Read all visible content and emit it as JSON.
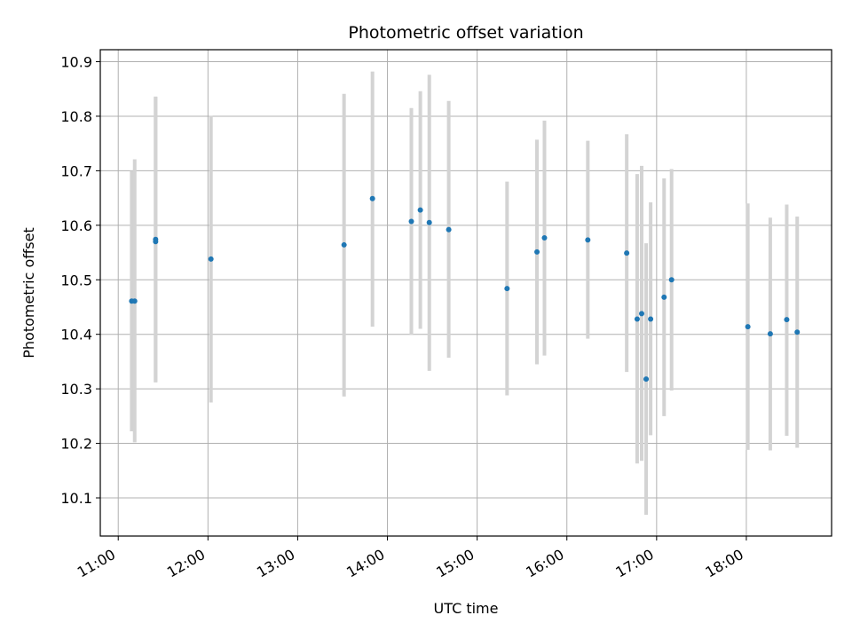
{
  "chart_data": {
    "type": "scatter",
    "title": "Photometric offset variation",
    "xlabel": "UTC time",
    "ylabel": "Photometric offset",
    "x_unit": "hour",
    "xlim": [
      10.8,
      18.95
    ],
    "ylim": [
      10.03,
      10.922
    ],
    "grid": true,
    "x_ticks": [
      {
        "value": 11,
        "label": "11:00"
      },
      {
        "value": 12,
        "label": "12:00"
      },
      {
        "value": 13,
        "label": "13:00"
      },
      {
        "value": 14,
        "label": "14:00"
      },
      {
        "value": 15,
        "label": "15:00"
      },
      {
        "value": 16,
        "label": "16:00"
      },
      {
        "value": 17,
        "label": "17:00"
      },
      {
        "value": 18,
        "label": "18:00"
      }
    ],
    "y_ticks": [
      {
        "value": 10.1,
        "label": "10.1"
      },
      {
        "value": 10.2,
        "label": "10.2"
      },
      {
        "value": 10.3,
        "label": "10.3"
      },
      {
        "value": 10.4,
        "label": "10.4"
      },
      {
        "value": 10.5,
        "label": "10.5"
      },
      {
        "value": 10.6,
        "label": "10.6"
      },
      {
        "value": 10.7,
        "label": "10.7"
      },
      {
        "value": 10.8,
        "label": "10.8"
      },
      {
        "value": 10.9,
        "label": "10.9"
      }
    ],
    "colors": {
      "point": "#1f77b4",
      "errorbar": "#d3d3d3",
      "grid": "#b0b0b0"
    },
    "points": [
      {
        "x": "11:09",
        "y": 10.461,
        "low": 10.222,
        "high": 10.7
      },
      {
        "x": "11:11",
        "y": 10.461,
        "low": 10.202,
        "high": 10.721
      },
      {
        "x": "11:25",
        "y": 10.57,
        "low": 10.312,
        "high": 10.836
      },
      {
        "x": "11:25",
        "y": 10.574,
        "low": 10.312,
        "high": 10.836
      },
      {
        "x": "12:02",
        "y": 10.538,
        "low": 10.275,
        "high": 10.801
      },
      {
        "x": "13:31",
        "y": 10.564,
        "low": 10.286,
        "high": 10.841
      },
      {
        "x": "13:50",
        "y": 10.649,
        "low": 10.414,
        "high": 10.882
      },
      {
        "x": "14:16",
        "y": 10.607,
        "low": 10.399,
        "high": 10.815
      },
      {
        "x": "14:22",
        "y": 10.628,
        "low": 10.41,
        "high": 10.846
      },
      {
        "x": "14:28",
        "y": 10.605,
        "low": 10.333,
        "high": 10.876
      },
      {
        "x": "14:41",
        "y": 10.592,
        "low": 10.357,
        "high": 10.828
      },
      {
        "x": "15:20",
        "y": 10.484,
        "low": 10.288,
        "high": 10.68
      },
      {
        "x": "15:40",
        "y": 10.551,
        "low": 10.345,
        "high": 10.757
      },
      {
        "x": "15:45",
        "y": 10.577,
        "low": 10.361,
        "high": 10.792
      },
      {
        "x": "16:14",
        "y": 10.573,
        "low": 10.392,
        "high": 10.755
      },
      {
        "x": "16:40",
        "y": 10.549,
        "low": 10.331,
        "high": 10.767
      },
      {
        "x": "16:47",
        "y": 10.428,
        "low": 10.163,
        "high": 10.694
      },
      {
        "x": "16:50",
        "y": 10.438,
        "low": 10.168,
        "high": 10.709
      },
      {
        "x": "16:53",
        "y": 10.318,
        "low": 10.069,
        "high": 10.567
      },
      {
        "x": "16:56",
        "y": 10.428,
        "low": 10.215,
        "high": 10.642
      },
      {
        "x": "17:05",
        "y": 10.468,
        "low": 10.25,
        "high": 10.686
      },
      {
        "x": "17:10",
        "y": 10.5,
        "low": 10.297,
        "high": 10.703
      },
      {
        "x": "18:01",
        "y": 10.414,
        "low": 10.188,
        "high": 10.64
      },
      {
        "x": "18:16",
        "y": 10.401,
        "low": 10.187,
        "high": 10.614
      },
      {
        "x": "18:27",
        "y": 10.427,
        "low": 10.214,
        "high": 10.638
      },
      {
        "x": "18:34",
        "y": 10.404,
        "low": 10.192,
        "high": 10.616
      }
    ]
  }
}
